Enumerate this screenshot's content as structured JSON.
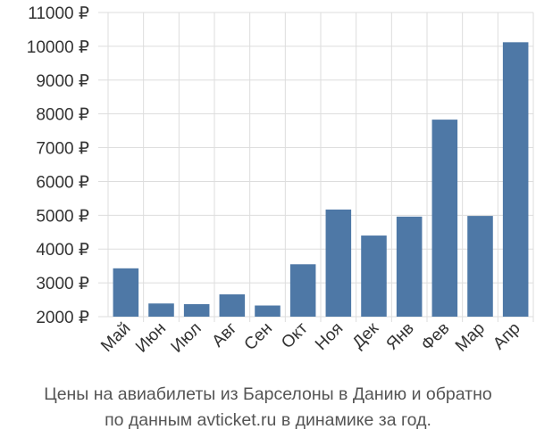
{
  "chart_data": {
    "type": "bar",
    "categories": [
      "Май",
      "Июн",
      "Июл",
      "Авг",
      "Сен",
      "Окт",
      "Ноя",
      "Дек",
      "Янв",
      "Фев",
      "Мар",
      "Апр"
    ],
    "values": [
      3430,
      2390,
      2370,
      2660,
      2330,
      3550,
      5170,
      4400,
      4960,
      7830,
      4980,
      10120
    ],
    "ylim": [
      2000,
      11000
    ],
    "yticks": [
      2000,
      3000,
      4000,
      5000,
      6000,
      7000,
      8000,
      9000,
      10000,
      11000
    ],
    "tick_suffix": " ₽",
    "grid": true,
    "bar_color": "#4e78a6",
    "grid_color": "#dddddd",
    "caption_lines": [
      "Цены на авиабилеты из Барселоны в Данию и обратно",
      "по данным avticket.ru в динамике за год."
    ]
  }
}
